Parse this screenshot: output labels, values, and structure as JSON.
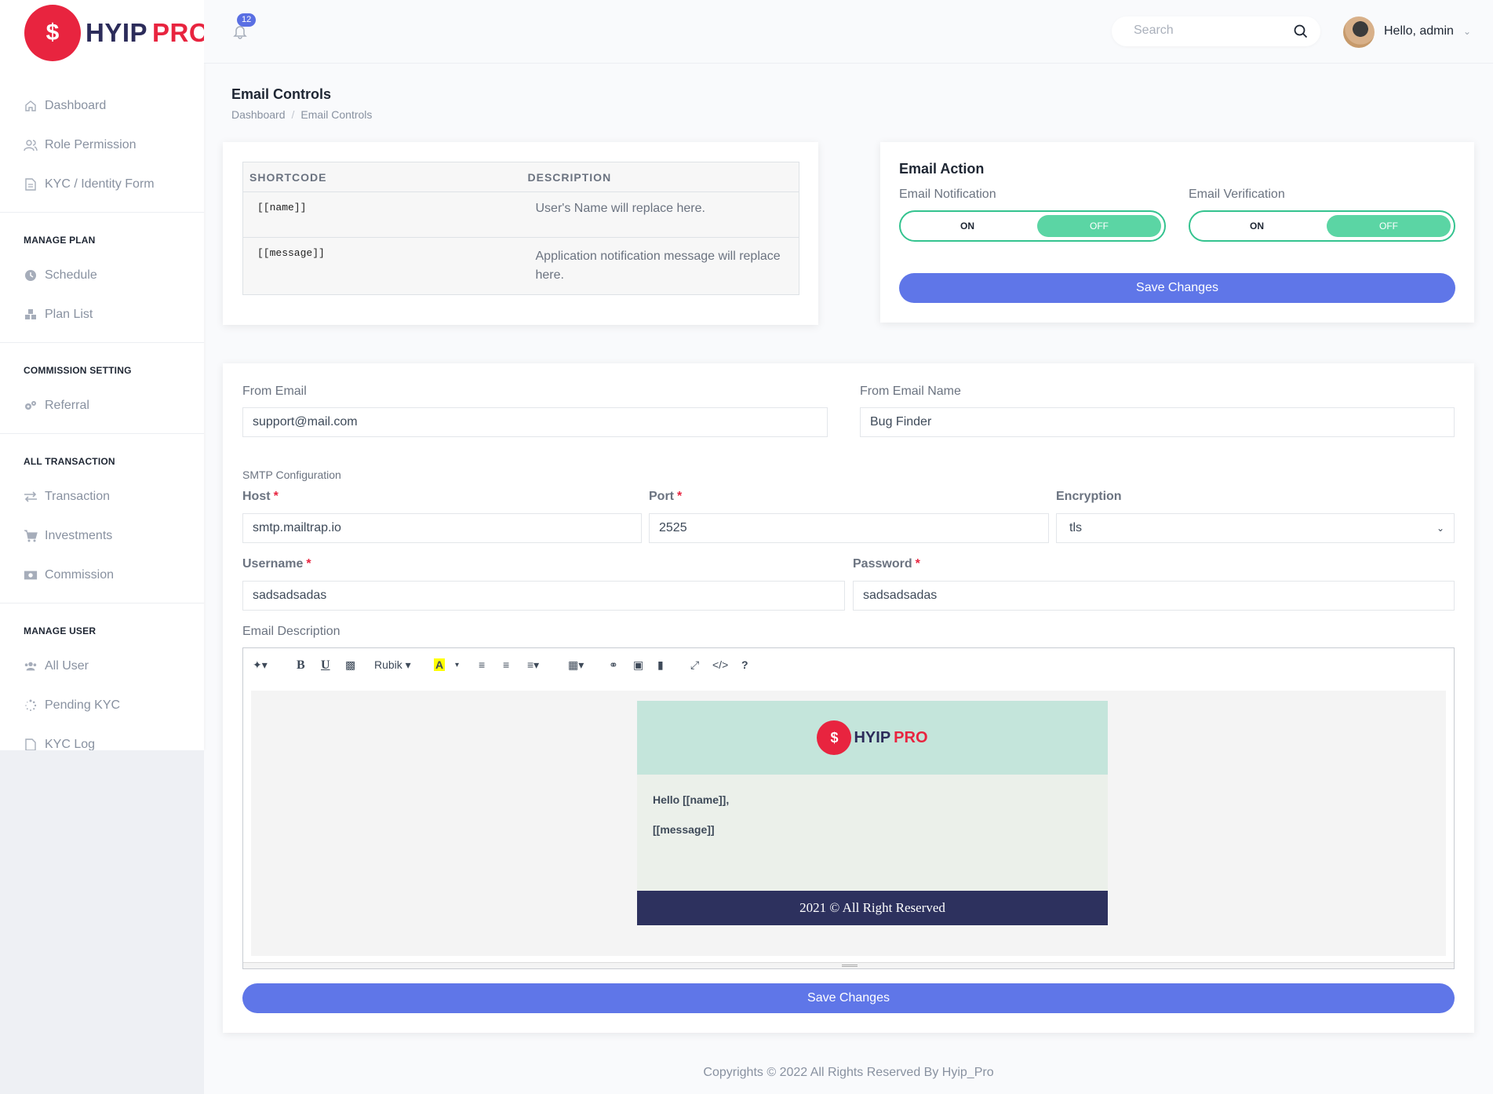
{
  "brand": {
    "name_a": "HYIP",
    "name_b": "PRO"
  },
  "topbar": {
    "notifications": "12",
    "search_placeholder": "Search",
    "greeting": "Hello, admin"
  },
  "sidebar": {
    "items": [
      {
        "label": "Dashboard",
        "icon": "home-icon"
      },
      {
        "label": "Role Permission",
        "icon": "users-icon"
      },
      {
        "label": "KYC / Identity Form",
        "icon": "file-icon"
      }
    ],
    "sections": [
      {
        "heading": "MANAGE PLAN",
        "items": [
          {
            "label": "Schedule",
            "icon": "clock-icon"
          },
          {
            "label": "Plan List",
            "icon": "cubes-icon"
          }
        ]
      },
      {
        "heading": "COMMISSION SETTING",
        "items": [
          {
            "label": "Referral",
            "icon": "cogs-icon"
          }
        ]
      },
      {
        "heading": "ALL TRANSACTION",
        "items": [
          {
            "label": "Transaction",
            "icon": "exchange-icon"
          },
          {
            "label": "Investments",
            "icon": "cart-icon"
          },
          {
            "label": "Commission",
            "icon": "money-icon"
          }
        ]
      },
      {
        "heading": "MANAGE USER",
        "items": [
          {
            "label": "All User",
            "icon": "users-icon"
          },
          {
            "label": "Pending KYC",
            "icon": "spinner-icon"
          },
          {
            "label": "KYC Log",
            "icon": "file-icon"
          }
        ]
      }
    ]
  },
  "page": {
    "title": "Email Controls",
    "breadcrumb": [
      "Dashboard",
      "Email Controls"
    ]
  },
  "shortcodes": {
    "headers": [
      "SHORTCODE",
      "DESCRIPTION"
    ],
    "rows": [
      {
        "code": "[[name]]",
        "desc": "User's Name will replace here."
      },
      {
        "code": "[[message]]",
        "desc": "Application notification message will replace here."
      }
    ]
  },
  "email_action": {
    "title": "Email Action",
    "notification_label": "Email Notification",
    "verification_label": "Email Verification",
    "on_label": "ON",
    "off_label": "OFF",
    "save_label": "Save Changes"
  },
  "form": {
    "from_email_label": "From Email",
    "from_email": "support@mail.com",
    "from_name_label": "From Email Name",
    "from_name": "Bug Finder",
    "smtp_label": "SMTP Configuration",
    "host_label": "Host",
    "host": "smtp.mailtrap.io",
    "port_label": "Port",
    "port": "2525",
    "encryption_label": "Encryption",
    "encryption": "tls",
    "username_label": "Username",
    "username": "sadsadsadas",
    "password_label": "Password",
    "password": "sadsadsadas",
    "description_label": "Email Description",
    "required_mark": "*",
    "save_label": "Save Changes"
  },
  "editor": {
    "font_name": "Rubik",
    "template": {
      "greeting": "Hello [[name]],",
      "message": "[[message]]",
      "footer": "2021 © All Right Reserved"
    }
  },
  "footer": {
    "text": "Copyrights © 2022 All Rights Reserved By Hyip_Pro"
  }
}
